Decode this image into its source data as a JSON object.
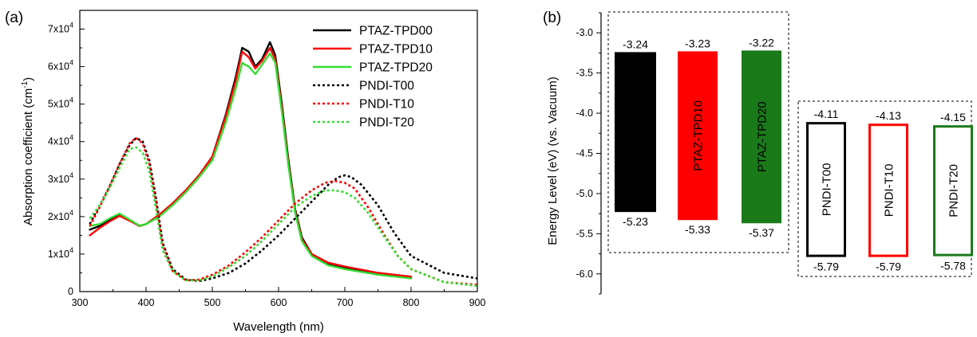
{
  "chart_data": [
    {
      "type": "line",
      "panel_label": "(a)",
      "xlabel": "Wavelength (nm)",
      "ylabel": "Absorption coefficient (cm",
      "ylabel_sup": "-1",
      "ylabel_tail": ")",
      "xlim": [
        300,
        900
      ],
      "ylim": [
        0,
        75000
      ],
      "xticks": [
        300,
        400,
        500,
        600,
        700,
        800,
        900
      ],
      "yticks": [
        {
          "value": 0,
          "mantissa": "0",
          "exp": ""
        },
        {
          "value": 10000,
          "mantissa": "1x10",
          "exp": "4"
        },
        {
          "value": 20000,
          "mantissa": "2x10",
          "exp": "4"
        },
        {
          "value": 30000,
          "mantissa": "3x10",
          "exp": "4"
        },
        {
          "value": 40000,
          "mantissa": "4x10",
          "exp": "4"
        },
        {
          "value": 50000,
          "mantissa": "5x10",
          "exp": "4"
        },
        {
          "value": 60000,
          "mantissa": "6x10",
          "exp": "4"
        },
        {
          "value": 70000,
          "mantissa": "7x10",
          "exp": "4"
        }
      ],
      "legend_position": "top-right",
      "series": [
        {
          "name": "PTAZ-TPD00",
          "color": "#000000",
          "dash": false,
          "x": [
            315,
            330,
            345,
            360,
            375,
            390,
            400,
            420,
            440,
            460,
            480,
            500,
            520,
            535,
            545,
            555,
            565,
            575,
            587,
            595,
            605,
            615,
            625,
            635,
            650,
            675,
            700,
            750,
            800
          ],
          "y": [
            16500,
            17500,
            19000,
            20500,
            19000,
            17500,
            18000,
            20500,
            23500,
            27000,
            31000,
            36000,
            47000,
            57000,
            65000,
            64000,
            60000,
            62000,
            66500,
            63000,
            50000,
            35000,
            22000,
            14500,
            10000,
            7500,
            6500,
            4800,
            3800
          ]
        },
        {
          "name": "PTAZ-TPD10",
          "color": "#ff0000",
          "dash": false,
          "x": [
            315,
            330,
            345,
            360,
            375,
            390,
            400,
            420,
            440,
            460,
            480,
            500,
            520,
            535,
            545,
            555,
            565,
            575,
            587,
            595,
            605,
            615,
            625,
            635,
            650,
            675,
            700,
            750,
            800
          ],
          "y": [
            15000,
            17000,
            18700,
            20200,
            18900,
            17500,
            18000,
            20500,
            23500,
            27000,
            31000,
            36000,
            46500,
            56000,
            64000,
            62500,
            59500,
            61500,
            65000,
            62000,
            49000,
            34000,
            21500,
            14000,
            10000,
            7700,
            6700,
            5000,
            4000
          ]
        },
        {
          "name": "PTAZ-TPD20",
          "color": "#33dd33",
          "dash": false,
          "x": [
            315,
            330,
            345,
            360,
            375,
            390,
            400,
            420,
            440,
            460,
            480,
            500,
            520,
            535,
            545,
            555,
            565,
            575,
            587,
            595,
            605,
            615,
            625,
            635,
            650,
            675,
            700,
            750,
            800
          ],
          "y": [
            17500,
            18000,
            19500,
            20800,
            19200,
            17600,
            18000,
            20000,
            23000,
            26500,
            30500,
            35000,
            45000,
            54000,
            61000,
            60000,
            58000,
            60500,
            63500,
            61000,
            48000,
            33500,
            21000,
            13500,
            9500,
            7000,
            6000,
            4500,
            3500
          ]
        },
        {
          "name": "PNDI-T00",
          "color": "#000000",
          "dash": true,
          "x": [
            315,
            330,
            345,
            360,
            375,
            385,
            395,
            405,
            415,
            425,
            440,
            460,
            480,
            500,
            525,
            550,
            575,
            600,
            625,
            650,
            675,
            690,
            700,
            710,
            725,
            750,
            775,
            800,
            850,
            900
          ],
          "y": [
            18000,
            23000,
            28000,
            34000,
            39000,
            41000,
            40000,
            35000,
            25000,
            13000,
            6000,
            3200,
            2800,
            3500,
            5000,
            7500,
            11000,
            15000,
            19500,
            24000,
            28500,
            30500,
            31000,
            30500,
            28500,
            23000,
            15500,
            9500,
            5000,
            3500
          ]
        },
        {
          "name": "PNDI-T10",
          "color": "#ff0000",
          "dash": true,
          "x": [
            315,
            330,
            345,
            360,
            375,
            385,
            395,
            405,
            415,
            425,
            440,
            460,
            480,
            500,
            525,
            550,
            575,
            600,
            625,
            650,
            670,
            685,
            700,
            715,
            735,
            760,
            780,
            800,
            850,
            900
          ],
          "y": [
            17500,
            22500,
            28000,
            34000,
            39500,
            41000,
            39500,
            34000,
            24000,
            12500,
            5500,
            3000,
            3200,
            4500,
            7000,
            10500,
            14500,
            19000,
            23500,
            27000,
            29000,
            29500,
            29000,
            27500,
            22500,
            15000,
            9500,
            6000,
            2500,
            1800
          ]
        },
        {
          "name": "PNDI-T20",
          "color": "#33dd33",
          "dash": true,
          "x": [
            315,
            330,
            345,
            360,
            375,
            385,
            395,
            405,
            415,
            425,
            440,
            460,
            480,
            500,
            525,
            550,
            575,
            600,
            625,
            650,
            670,
            685,
            700,
            715,
            735,
            760,
            780,
            800,
            850,
            900
          ],
          "y": [
            19500,
            23000,
            27500,
            33000,
            38000,
            38500,
            37000,
            32000,
            22000,
            11000,
            5500,
            3000,
            3000,
            4000,
            6500,
            9500,
            13500,
            18000,
            22500,
            25500,
            27000,
            27000,
            26500,
            25000,
            21000,
            14500,
            9500,
            6000,
            2500,
            1500
          ]
        }
      ]
    },
    {
      "type": "bar",
      "subtype": "energy-level-diagram",
      "panel_label": "(b)",
      "ylabel": "Energy Level (eV) (vs. Vacuum)",
      "ylim": [
        -6.25,
        -2.75
      ],
      "yticks": [
        {
          "value": -3.0,
          "label": "-3.0"
        },
        {
          "value": -3.5,
          "label": "-3.5"
        },
        {
          "value": -4.0,
          "label": "-4.0"
        },
        {
          "value": -4.5,
          "label": "-4.5"
        },
        {
          "value": -5.0,
          "label": "-5.0"
        },
        {
          "value": -5.5,
          "label": "-5.5"
        },
        {
          "value": -6.0,
          "label": "-6.0"
        }
      ],
      "levels": [
        {
          "name": "PTAZ-TPD00",
          "lumo": -3.24,
          "homo": -5.23,
          "lumo_label": "-3.24",
          "homo_label": "-5.23",
          "color": "#000000",
          "style": "filled",
          "group": "donor"
        },
        {
          "name": "PTAZ-TPD10",
          "lumo": -3.23,
          "homo": -5.33,
          "lumo_label": "-3.23",
          "homo_label": "-5.33",
          "color": "#ff0000",
          "style": "filled",
          "group": "donor"
        },
        {
          "name": "PTAZ-TPD20",
          "lumo": -3.22,
          "homo": -5.37,
          "lumo_label": "-3.22",
          "homo_label": "-5.37",
          "color": "#1a7a1a",
          "style": "filled",
          "group": "donor"
        },
        {
          "name": "PNDI-T00",
          "lumo": -4.11,
          "homo": -5.79,
          "lumo_label": "-4.11",
          "homo_label": "-5.79",
          "color": "#000000",
          "style": "outline",
          "group": "acceptor"
        },
        {
          "name": "PNDI-T10",
          "lumo": -4.13,
          "homo": -5.79,
          "lumo_label": "-4.13",
          "homo_label": "-5.79",
          "color": "#ff0000",
          "style": "outline",
          "group": "acceptor"
        },
        {
          "name": "PNDI-T20",
          "lumo": -4.15,
          "homo": -5.78,
          "lumo_label": "-4.15",
          "homo_label": "-5.78",
          "color": "#1a7a1a",
          "style": "outline",
          "group": "acceptor"
        }
      ]
    }
  ]
}
